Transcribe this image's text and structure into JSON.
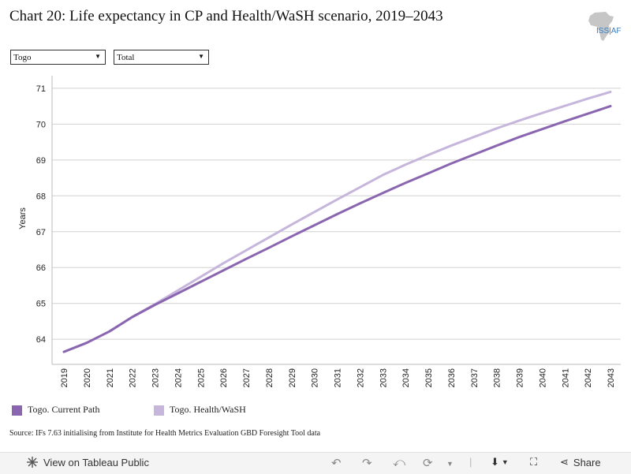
{
  "title": "Chart 20: Life expectancy in CP and Health/WaSH scenario, 2019–2043",
  "logo": {
    "text": "ISS|AF",
    "icon": "africa-map-logo"
  },
  "filters": {
    "country": {
      "selected": "Togo"
    },
    "measure": {
      "selected": "Total"
    }
  },
  "source": "Source: IFs 7.63 initialising from Institute for Health Metrics Evaluation GBD Foresight Tool data",
  "toolbar": {
    "view_label": "View on Tableau Public",
    "share_label": "Share"
  },
  "colors": {
    "current_path": "#8a66b0",
    "health_wash": "#c7b6dc",
    "grid": "#d0d0d0"
  },
  "chart_data": {
    "type": "line",
    "title": "Chart 20: Life expectancy in CP and Health/WaSH scenario, 2019–2043",
    "xlabel": "",
    "ylabel": "Years",
    "x": [
      "2019",
      "2020",
      "2021",
      "2022",
      "2023",
      "2024",
      "2025",
      "2026",
      "2027",
      "2028",
      "2029",
      "2030",
      "2031",
      "2032",
      "2033",
      "2034",
      "2035",
      "2036",
      "2037",
      "2038",
      "2039",
      "2040",
      "2041",
      "2042",
      "2043"
    ],
    "ylim": [
      63.3,
      71.35
    ],
    "yticks": [
      64,
      65,
      66,
      67,
      68,
      69,
      70,
      71
    ],
    "grid": true,
    "legend_position": "bottom",
    "series": [
      {
        "name": "Togo. Current Path",
        "color": "#8a66b0",
        "values": [
          63.65,
          63.9,
          64.22,
          64.62,
          64.96,
          65.28,
          65.6,
          65.92,
          66.24,
          66.55,
          66.87,
          67.18,
          67.49,
          67.79,
          68.08,
          68.36,
          68.63,
          68.9,
          69.15,
          69.4,
          69.64,
          69.86,
          70.08,
          70.29,
          70.5
        ]
      },
      {
        "name": "Togo. Health/WaSH",
        "color": "#c7b6dc",
        "values": [
          63.65,
          63.9,
          64.22,
          64.62,
          64.98,
          65.36,
          65.74,
          66.12,
          66.48,
          66.84,
          67.2,
          67.55,
          67.9,
          68.24,
          68.58,
          68.87,
          69.14,
          69.4,
          69.64,
          69.88,
          70.1,
          70.31,
          70.51,
          70.71,
          70.9
        ]
      }
    ]
  }
}
